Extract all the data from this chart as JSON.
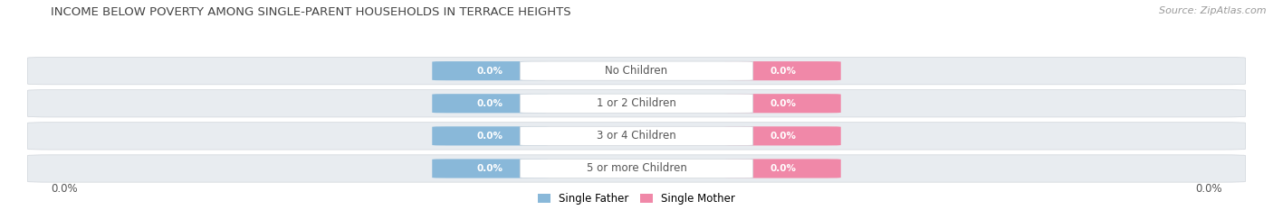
{
  "title": "INCOME BELOW POVERTY AMONG SINGLE-PARENT HOUSEHOLDS IN TERRACE HEIGHTS",
  "source": "Source: ZipAtlas.com",
  "categories": [
    "No Children",
    "1 or 2 Children",
    "3 or 4 Children",
    "5 or more Children"
  ],
  "father_values": [
    0.0,
    0.0,
    0.0,
    0.0
  ],
  "mother_values": [
    0.0,
    0.0,
    0.0,
    0.0
  ],
  "father_color": "#89b8d9",
  "mother_color": "#f088a8",
  "row_bg_color": "#e8ecf0",
  "row_alt_color": "#edf0f4",
  "label_color": "#555555",
  "title_color": "#444444",
  "x_left_label": "0.0%",
  "x_right_label": "0.0%",
  "legend_father": "Single Father",
  "legend_mother": "Single Mother",
  "background_color": "#ffffff"
}
